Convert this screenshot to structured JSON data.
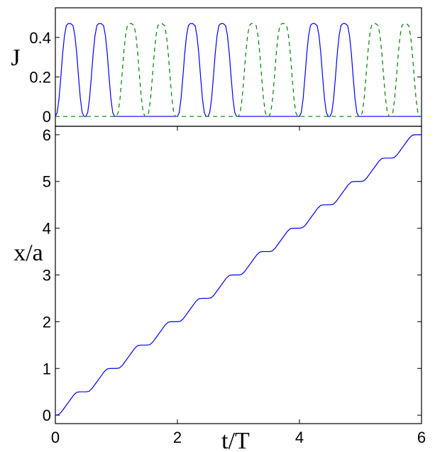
{
  "chart_data": [
    {
      "type": "line",
      "ylabel": "J",
      "xlim": [
        0,
        6
      ],
      "ylim": [
        -0.05,
        0.55
      ],
      "yticks": [
        "0",
        "0.2",
        "0.4"
      ],
      "grid": false,
      "series": [
        {
          "style": "solid",
          "color": "#0000ff",
          "x": [
            0,
            0.03,
            0.06,
            0.09,
            0.12,
            0.15,
            0.18,
            0.21,
            0.25,
            0.29,
            0.32,
            0.35,
            0.38,
            0.41,
            0.44,
            0.47,
            0.5,
            0.53,
            0.56,
            0.59,
            0.62,
            0.65,
            0.68,
            0.71,
            0.75,
            0.79,
            0.82,
            0.85,
            0.88,
            0.91,
            0.94,
            0.97,
            1,
            2,
            2.03,
            2.06,
            2.09,
            2.12,
            2.15,
            2.18,
            2.21,
            2.25,
            2.29,
            2.32,
            2.35,
            2.38,
            2.41,
            2.44,
            2.47,
            2.5,
            2.53,
            2.56,
            2.59,
            2.62,
            2.65,
            2.68,
            2.71,
            2.75,
            2.79,
            2.82,
            2.85,
            2.88,
            2.91,
            2.94,
            2.97,
            3,
            4,
            4.03,
            4.06,
            4.09,
            4.12,
            4.15,
            4.18,
            4.21,
            4.25,
            4.29,
            4.32,
            4.35,
            4.38,
            4.41,
            4.44,
            4.47,
            4.5,
            4.53,
            4.56,
            4.59,
            4.62,
            4.65,
            4.68,
            4.71,
            4.75,
            4.79,
            4.82,
            4.85,
            4.88,
            4.91,
            4.94,
            4.97,
            5,
            6
          ],
          "y": [
            0,
            0.02,
            0.09,
            0.2,
            0.32,
            0.41,
            0.46,
            0.47,
            0.47,
            0.46,
            0.41,
            0.32,
            0.2,
            0.09,
            0.02,
            0,
            0,
            0.02,
            0.09,
            0.2,
            0.32,
            0.41,
            0.46,
            0.47,
            0.47,
            0.46,
            0.41,
            0.32,
            0.2,
            0.09,
            0.02,
            0,
            0,
            0,
            0.02,
            0.09,
            0.2,
            0.32,
            0.41,
            0.46,
            0.47,
            0.47,
            0.46,
            0.41,
            0.32,
            0.2,
            0.09,
            0.02,
            0,
            0,
            0.02,
            0.09,
            0.2,
            0.32,
            0.41,
            0.46,
            0.47,
            0.47,
            0.46,
            0.41,
            0.32,
            0.2,
            0.09,
            0.02,
            0,
            0,
            0,
            0.02,
            0.09,
            0.2,
            0.32,
            0.41,
            0.46,
            0.47,
            0.47,
            0.46,
            0.41,
            0.32,
            0.2,
            0.09,
            0.02,
            0,
            0,
            0.02,
            0.09,
            0.2,
            0.32,
            0.41,
            0.46,
            0.47,
            0.47,
            0.46,
            0.41,
            0.32,
            0.2,
            0.09,
            0.02,
            0,
            0,
            0
          ]
        },
        {
          "style": "dashed",
          "color": "#008000",
          "x": [
            0,
            1,
            1.03,
            1.06,
            1.09,
            1.12,
            1.15,
            1.18,
            1.21,
            1.25,
            1.29,
            1.32,
            1.35,
            1.38,
            1.41,
            1.44,
            1.47,
            1.5,
            1.53,
            1.56,
            1.59,
            1.62,
            1.65,
            1.68,
            1.71,
            1.75,
            1.79,
            1.82,
            1.85,
            1.88,
            1.91,
            1.94,
            1.97,
            2,
            3,
            3.03,
            3.06,
            3.09,
            3.12,
            3.15,
            3.18,
            3.21,
            3.25,
            3.29,
            3.32,
            3.35,
            3.38,
            3.41,
            3.44,
            3.47,
            3.5,
            3.53,
            3.56,
            3.59,
            3.62,
            3.65,
            3.68,
            3.71,
            3.75,
            3.79,
            3.82,
            3.85,
            3.88,
            3.91,
            3.94,
            3.97,
            4,
            5,
            5.03,
            5.06,
            5.09,
            5.12,
            5.15,
            5.18,
            5.21,
            5.25,
            5.29,
            5.32,
            5.35,
            5.38,
            5.41,
            5.44,
            5.47,
            5.5,
            5.53,
            5.56,
            5.59,
            5.62,
            5.65,
            5.68,
            5.71,
            5.75,
            5.79,
            5.82,
            5.85,
            5.88,
            5.91,
            5.94,
            5.97,
            6
          ],
          "y": [
            0,
            0,
            0.02,
            0.09,
            0.2,
            0.32,
            0.41,
            0.46,
            0.47,
            0.47,
            0.46,
            0.41,
            0.32,
            0.2,
            0.09,
            0.02,
            0,
            0,
            0.02,
            0.09,
            0.2,
            0.32,
            0.41,
            0.46,
            0.47,
            0.47,
            0.46,
            0.41,
            0.32,
            0.2,
            0.09,
            0.02,
            0,
            0,
            0,
            0.02,
            0.09,
            0.2,
            0.32,
            0.41,
            0.46,
            0.47,
            0.47,
            0.46,
            0.41,
            0.32,
            0.2,
            0.09,
            0.02,
            0,
            0,
            0.02,
            0.09,
            0.2,
            0.32,
            0.41,
            0.46,
            0.47,
            0.47,
            0.46,
            0.41,
            0.32,
            0.2,
            0.09,
            0.02,
            0,
            0,
            0,
            0.02,
            0.09,
            0.2,
            0.32,
            0.41,
            0.46,
            0.47,
            0.47,
            0.46,
            0.41,
            0.32,
            0.2,
            0.09,
            0.02,
            0,
            0,
            0.02,
            0.09,
            0.2,
            0.32,
            0.41,
            0.46,
            0.47,
            0.47,
            0.46,
            0.41,
            0.32,
            0.2,
            0.09,
            0.02,
            0,
            0
          ]
        }
      ]
    },
    {
      "type": "line",
      "xlabel": "t/T",
      "ylabel": "x/a",
      "xlim": [
        0,
        6
      ],
      "ylim": [
        -0.18,
        6.18
      ],
      "xticks": [
        "0",
        "2",
        "4",
        "6"
      ],
      "yticks": [
        "0",
        "1",
        "2",
        "3",
        "4",
        "5",
        "6"
      ],
      "grid": false,
      "series": [
        {
          "style": "solid",
          "color": "#0000ff",
          "x": [
            0,
            0.05,
            0.1,
            0.15,
            0.2,
            0.25,
            0.3,
            0.35,
            0.4,
            0.45,
            0.5,
            0.55,
            0.6,
            0.65,
            0.7,
            0.75,
            0.8,
            0.85,
            0.9,
            0.95,
            1,
            1.05,
            1.1,
            1.15,
            1.2,
            1.25,
            1.3,
            1.35,
            1.4,
            1.45,
            1.5,
            1.55,
            1.6,
            1.65,
            1.7,
            1.75,
            1.8,
            1.85,
            1.9,
            1.95,
            2,
            2.05,
            2.1,
            2.15,
            2.2,
            2.25,
            2.3,
            2.35,
            2.4,
            2.45,
            2.5,
            2.55,
            2.6,
            2.65,
            2.7,
            2.75,
            2.8,
            2.85,
            2.9,
            2.95,
            3,
            3.05,
            3.1,
            3.15,
            3.2,
            3.25,
            3.3,
            3.35,
            3.4,
            3.45,
            3.5,
            3.55,
            3.6,
            3.65,
            3.7,
            3.75,
            3.8,
            3.85,
            3.9,
            3.95,
            4,
            4.05,
            4.1,
            4.15,
            4.2,
            4.25,
            4.3,
            4.35,
            4.4,
            4.45,
            4.5,
            4.55,
            4.6,
            4.65,
            4.7,
            4.75,
            4.8,
            4.85,
            4.9,
            4.95,
            5,
            5.05,
            5.1,
            5.15,
            5.2,
            5.25,
            5.3,
            5.35,
            5.4,
            5.45,
            5.5,
            5.55,
            5.6,
            5.65,
            5.7,
            5.75,
            5.8,
            5.85,
            5.9,
            5.95,
            6
          ],
          "y": [
            0,
            0.01,
            0.07,
            0.16,
            0.25,
            0.34,
            0.43,
            0.49,
            0.5,
            0.5,
            0.5,
            0.51,
            0.57,
            0.66,
            0.75,
            0.84,
            0.93,
            0.99,
            1,
            1,
            1,
            1.01,
            1.07,
            1.16,
            1.25,
            1.34,
            1.43,
            1.49,
            1.5,
            1.5,
            1.5,
            1.51,
            1.57,
            1.66,
            1.75,
            1.84,
            1.93,
            1.99,
            2,
            2,
            2,
            2.01,
            2.07,
            2.16,
            2.25,
            2.34,
            2.43,
            2.49,
            2.5,
            2.5,
            2.5,
            2.51,
            2.57,
            2.66,
            2.75,
            2.84,
            2.93,
            2.99,
            3,
            3,
            3,
            3.01,
            3.07,
            3.16,
            3.25,
            3.34,
            3.43,
            3.49,
            3.5,
            3.5,
            3.5,
            3.51,
            3.57,
            3.66,
            3.75,
            3.84,
            3.93,
            3.99,
            4,
            4,
            4,
            4.01,
            4.07,
            4.16,
            4.25,
            4.34,
            4.43,
            4.49,
            4.5,
            4.5,
            4.5,
            4.51,
            4.57,
            4.66,
            4.75,
            4.84,
            4.93,
            4.99,
            5,
            5,
            5,
            5.01,
            5.07,
            5.16,
            5.25,
            5.34,
            5.43,
            5.49,
            5.5,
            5.5,
            5.5,
            5.51,
            5.57,
            5.66,
            5.75,
            5.84,
            5.93,
            5.99,
            6,
            6,
            6
          ]
        }
      ]
    }
  ]
}
